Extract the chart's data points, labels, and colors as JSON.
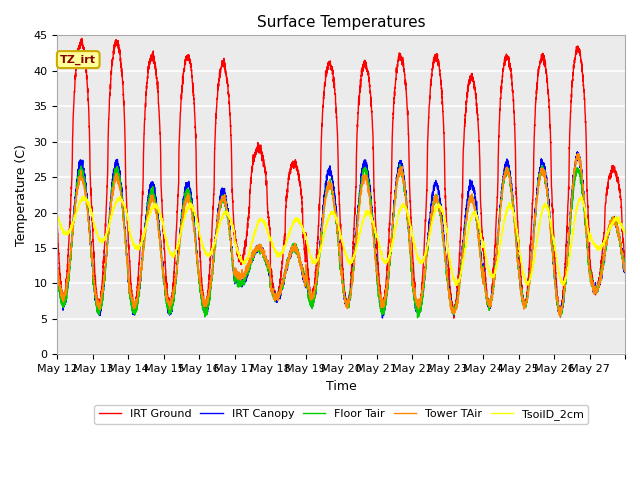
{
  "title": "Surface Temperatures",
  "xlabel": "Time",
  "ylabel": "Temperature (C)",
  "ylim": [
    0,
    45
  ],
  "annotation_label": "TZ_irt",
  "annotation_bg": "#FFFF99",
  "annotation_border": "#CCAA00",
  "plot_bg": "#EBEBEB",
  "legend_labels": [
    "IRT Ground",
    "IRT Canopy",
    "Floor Tair",
    "Tower TAir",
    "TsoilD_2cm"
  ],
  "line_colors": [
    "#FF0000",
    "#0000FF",
    "#00CC00",
    "#FF8800",
    "#FFFF00"
  ],
  "xtick_labels": [
    "May 12",
    "May 13",
    "May 14",
    "May 15",
    "May 16",
    "May 17",
    "May 18",
    "May 19",
    "May 20",
    "May 21",
    "May 22",
    "May 23",
    "May 24",
    "May 25",
    "May 26",
    "May 27"
  ],
  "n_days": 16,
  "samples_per_day": 288,
  "day_peaks_ground": [
    44,
    44,
    42,
    42,
    41,
    29,
    27,
    41,
    41,
    42,
    42,
    39,
    42,
    42,
    43,
    26
  ],
  "day_peaks_canopy": [
    27,
    27,
    24,
    24,
    23,
    15,
    15,
    26,
    27,
    27,
    24,
    24,
    27,
    27,
    28,
    19
  ],
  "day_peaks_floor": [
    26,
    26,
    23,
    23,
    22,
    15,
    15,
    24,
    26,
    26,
    22,
    22,
    26,
    26,
    26,
    19
  ],
  "day_peaks_tower": [
    25,
    25,
    22,
    22,
    22,
    15,
    15,
    24,
    25,
    26,
    22,
    22,
    26,
    26,
    28,
    19
  ],
  "day_lows_ground": [
    8,
    7,
    7,
    7,
    7,
    13,
    8,
    8,
    7,
    7,
    6,
    6,
    7,
    7,
    6,
    9
  ],
  "day_lows_canopy": [
    7,
    6,
    6,
    6,
    6,
    10,
    8,
    7,
    7,
    6,
    6,
    6,
    7,
    7,
    6,
    9
  ],
  "day_lows_floor": [
    7,
    6,
    6,
    6,
    6,
    10,
    8,
    7,
    7,
    6,
    6,
    6,
    7,
    7,
    6,
    9
  ],
  "day_lows_tower": [
    8,
    7,
    7,
    7,
    7,
    11,
    8,
    8,
    7,
    7,
    7,
    6,
    7,
    7,
    6,
    9
  ],
  "tsoil_min": [
    17,
    16,
    15,
    14,
    14,
    13,
    14,
    13,
    13,
    13,
    13,
    10,
    11,
    10,
    10,
    15
  ],
  "tsoil_max": [
    22,
    22,
    21,
    21,
    20,
    19,
    19,
    20,
    20,
    21,
    21,
    20,
    21,
    21,
    22,
    19
  ]
}
